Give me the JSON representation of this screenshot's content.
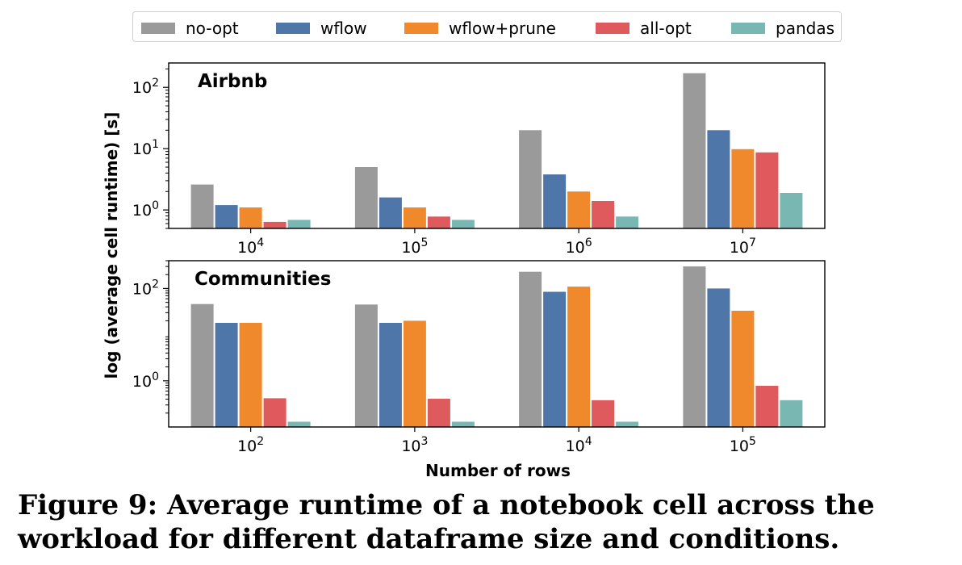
{
  "legend": [
    {
      "name": "no-opt",
      "color": "#9a9a9a"
    },
    {
      "name": "wflow",
      "color": "#4f76a8"
    },
    {
      "name": "wflow+prune",
      "color": "#f0882c"
    },
    {
      "name": "all-opt",
      "color": "#df5a5c"
    },
    {
      "name": "pandas",
      "color": "#79b7b2"
    }
  ],
  "ylabel": "log (average cell runtime) [s]",
  "xlabel": "Number of rows",
  "caption": "Figure 9: Average runtime of a notebook cell across the workload for different dataframe size and conditions.",
  "chart_data": [
    {
      "type": "bar",
      "title": "Airbnb",
      "yscale": "log",
      "ylim": [
        0.5,
        250
      ],
      "categories": [
        "10^4",
        "10^5",
        "10^6",
        "10^7"
      ],
      "category_labels": [
        {
          "base": "10",
          "exp": "4"
        },
        {
          "base": "10",
          "exp": "5"
        },
        {
          "base": "10",
          "exp": "6"
        },
        {
          "base": "10",
          "exp": "7"
        }
      ],
      "yticks": [
        {
          "value": 1,
          "base": "10",
          "exp": "0"
        },
        {
          "value": 10,
          "base": "10",
          "exp": "1"
        },
        {
          "value": 100,
          "base": "10",
          "exp": "2"
        }
      ],
      "series": [
        {
          "name": "no-opt",
          "values": [
            2.6,
            5.0,
            20,
            170
          ]
        },
        {
          "name": "wflow",
          "values": [
            1.2,
            1.6,
            3.8,
            20
          ]
        },
        {
          "name": "wflow+prune",
          "values": [
            1.1,
            1.1,
            2.0,
            9.8
          ]
        },
        {
          "name": "all-opt",
          "values": [
            0.64,
            0.78,
            1.4,
            8.7
          ]
        },
        {
          "name": "pandas",
          "values": [
            0.69,
            0.69,
            0.78,
            1.9
          ]
        }
      ]
    },
    {
      "type": "bar",
      "title": "Communities",
      "yscale": "log",
      "ylim": [
        0.1,
        400
      ],
      "categories": [
        "10^2",
        "10^3",
        "10^4",
        "10^5"
      ],
      "category_labels": [
        {
          "base": "10",
          "exp": "2"
        },
        {
          "base": "10",
          "exp": "3"
        },
        {
          "base": "10",
          "exp": "4"
        },
        {
          "base": "10",
          "exp": "5"
        }
      ],
      "yticks": [
        {
          "value": 1,
          "base": "10",
          "exp": "0"
        },
        {
          "value": 100,
          "base": "10",
          "exp": "2"
        }
      ],
      "series": [
        {
          "name": "no-opt",
          "values": [
            46,
            45,
            230,
            300
          ]
        },
        {
          "name": "wflow",
          "values": [
            18,
            18,
            85,
            100
          ]
        },
        {
          "name": "wflow+prune",
          "values": [
            18,
            20,
            110,
            33
          ]
        },
        {
          "name": "all-opt",
          "values": [
            0.42,
            0.41,
            0.38,
            0.78
          ]
        },
        {
          "name": "pandas",
          "values": [
            0.13,
            0.13,
            0.13,
            0.38
          ]
        }
      ]
    }
  ]
}
